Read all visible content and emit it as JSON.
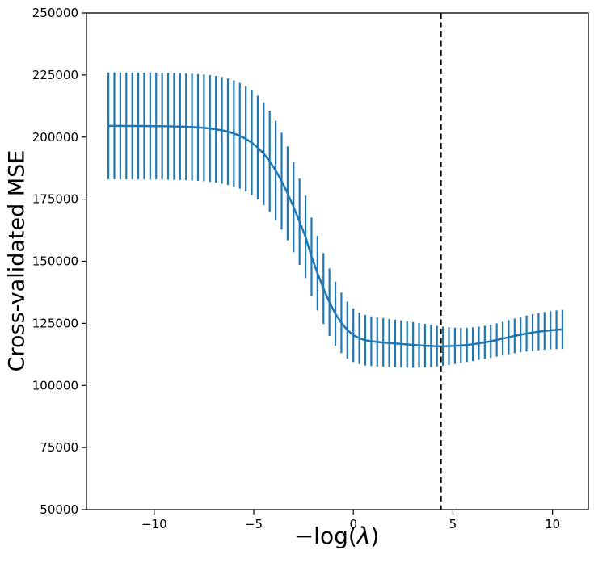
{
  "figure": {
    "background": "#ffffff"
  },
  "chart_data": {
    "type": "line",
    "subtype": "errorbar",
    "title": "",
    "xlabel": "−log(λ)",
    "xlabel_parts": {
      "prefix": "−log(",
      "lambda": "λ",
      "suffix": ")"
    },
    "ylabel": "Cross-validated MSE",
    "xlim": [
      -13.4,
      11.8
    ],
    "ylim": [
      50000,
      250000
    ],
    "x_ticks": [
      -10,
      -5,
      0,
      5,
      10
    ],
    "x_tick_labels": [
      "−10",
      "−5",
      "0",
      "5",
      "10"
    ],
    "y_ticks": [
      50000,
      75000,
      100000,
      125000,
      150000,
      175000,
      200000,
      225000,
      250000
    ],
    "y_tick_labels": [
      "50000",
      "75000",
      "100000",
      "125000",
      "150000",
      "175000",
      "200000",
      "225000",
      "250000"
    ],
    "grid": false,
    "legend": null,
    "axis_color": "#000000",
    "series": [
      {
        "name": "cv-mse-mean-with-std-errorbars",
        "color": "#1f77b4",
        "x": [
          -12.3,
          -12.0,
          -11.7,
          -11.4,
          -11.1,
          -10.8,
          -10.5,
          -10.2,
          -9.9,
          -9.6,
          -9.3,
          -9.0,
          -8.7,
          -8.4,
          -8.1,
          -7.8,
          -7.5,
          -7.2,
          -6.9,
          -6.6,
          -6.3,
          -6.0,
          -5.7,
          -5.4,
          -5.1,
          -4.8,
          -4.5,
          -4.2,
          -3.9,
          -3.6,
          -3.3,
          -3.0,
          -2.7,
          -2.4,
          -2.1,
          -1.8,
          -1.5,
          -1.2,
          -0.9,
          -0.6,
          -0.3,
          0.0,
          0.3,
          0.6,
          0.9,
          1.2,
          1.5,
          1.8,
          2.1,
          2.4,
          2.7,
          3.0,
          3.3,
          3.6,
          3.9,
          4.2,
          4.5,
          4.8,
          5.1,
          5.4,
          5.7,
          6.0,
          6.3,
          6.6,
          6.9,
          7.2,
          7.5,
          7.8,
          8.1,
          8.4,
          8.7,
          9.0,
          9.3,
          9.6,
          9.9,
          10.2,
          10.5
        ],
        "mean": [
          204500,
          204500,
          204490,
          204480,
          204470,
          204460,
          204450,
          204440,
          204420,
          204390,
          204350,
          204290,
          204230,
          204140,
          204030,
          203880,
          203690,
          203450,
          203130,
          202710,
          202180,
          201460,
          200520,
          199300,
          197740,
          195770,
          193300,
          190260,
          186600,
          182280,
          177320,
          171820,
          165930,
          159830,
          151800,
          145200,
          139000,
          133500,
          128900,
          125200,
          122300,
          120200,
          119000,
          118200,
          117800,
          117500,
          117300,
          117100,
          116900,
          116700,
          116500,
          116300,
          116150,
          116000,
          115900,
          115800,
          115800,
          115850,
          115950,
          116100,
          116300,
          116600,
          116950,
          117350,
          117800,
          118300,
          118850,
          119400,
          119950,
          120450,
          120900,
          121300,
          121650,
          121950,
          122200,
          122400,
          122550
        ],
        "err": [
          21500,
          21500,
          21500,
          21500,
          21500,
          21500,
          21500,
          21500,
          21500,
          21500,
          21500,
          21500,
          21500,
          21500,
          21500,
          21500,
          21500,
          21500,
          21500,
          21500,
          21450,
          21400,
          21300,
          21200,
          21100,
          20900,
          20700,
          20400,
          20000,
          19500,
          18900,
          18200,
          17400,
          16600,
          15800,
          15000,
          14300,
          13600,
          12900,
          12200,
          11500,
          10800,
          10400,
          10200,
          10000,
          9900,
          9800,
          9700,
          9600,
          9500,
          9350,
          9200,
          9000,
          8800,
          8500,
          8200,
          7900,
          7600,
          7300,
          7100,
          6900,
          6800,
          6700,
          6650,
          6650,
          6700,
          6800,
          6900,
          7000,
          7100,
          7250,
          7400,
          7500,
          7600,
          7700,
          7800,
          7900
        ]
      }
    ],
    "vline": {
      "x": 4.4,
      "color": "#000000",
      "style": "dashed",
      "name": "selected-lambda"
    }
  }
}
